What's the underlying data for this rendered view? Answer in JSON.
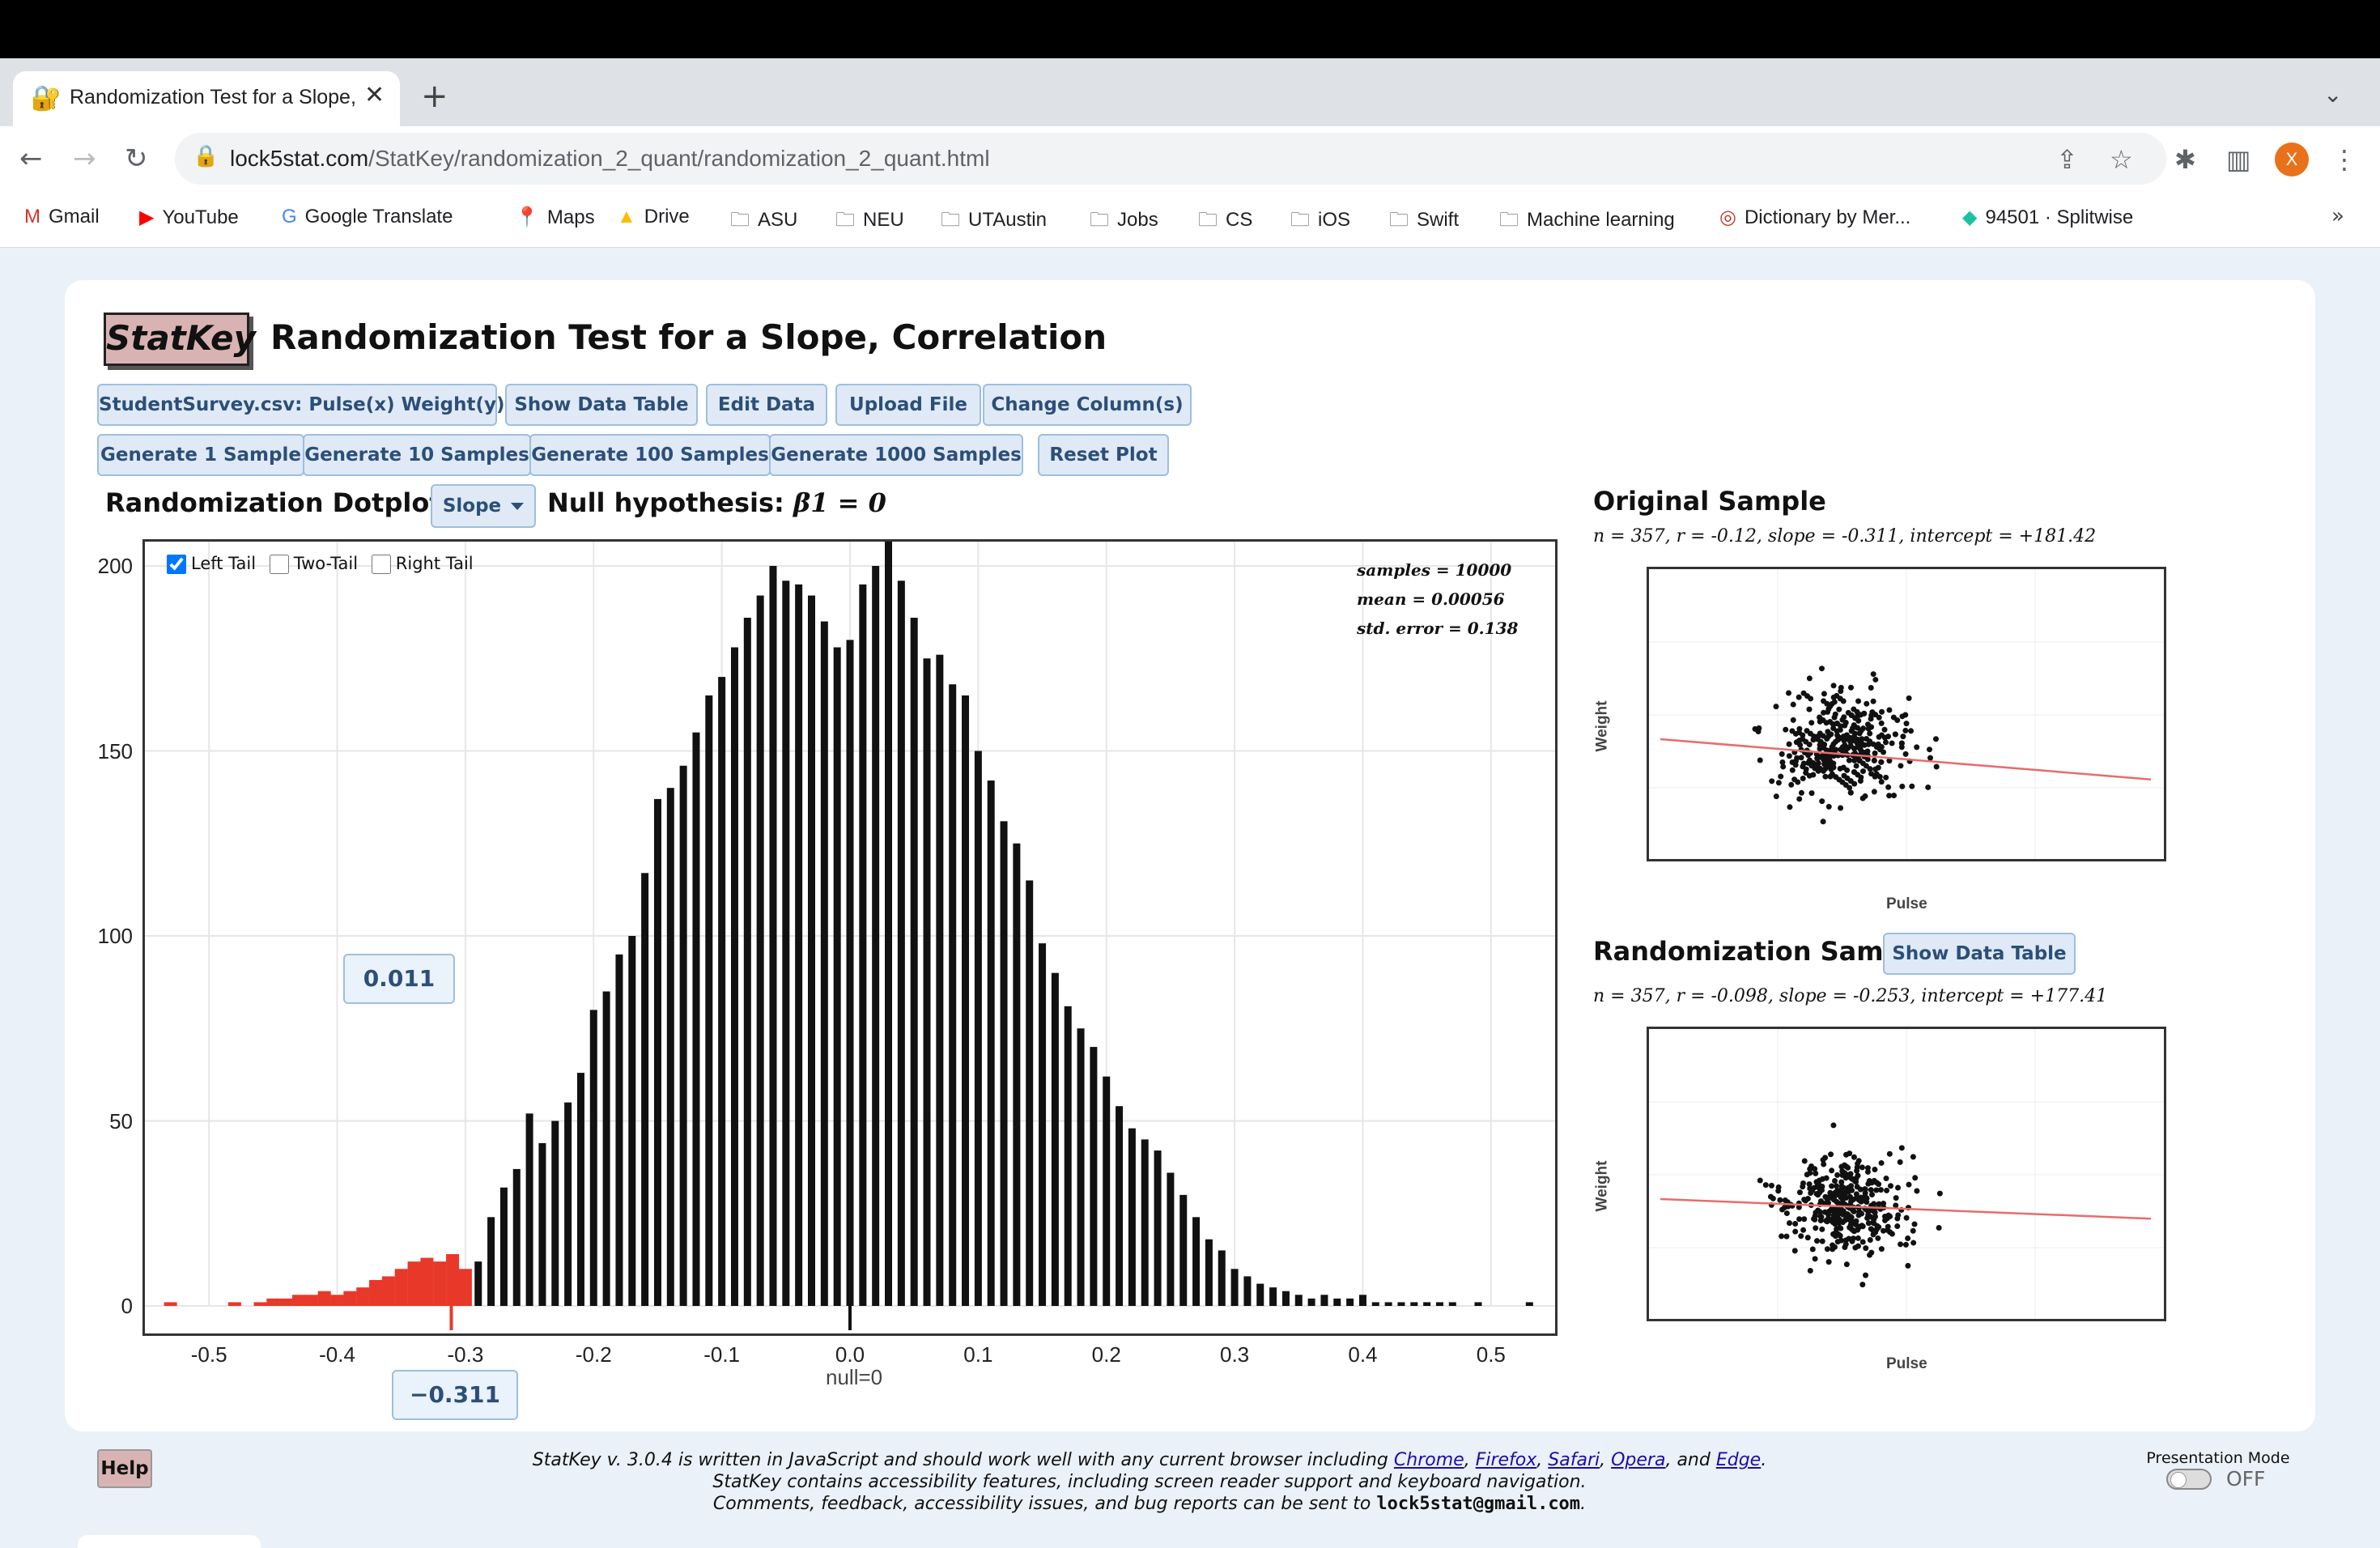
{
  "browser": {
    "tab_title": "Randomization Test for a Slope, Correlation",
    "url_domain": "lock5stat.com",
    "url_path": "/StatKey/randomization_2_quant/randomization_2_quant.html",
    "avatar_letter": "X",
    "bookmarks": [
      {
        "label": "Gmail",
        "icon": "gmail-icon"
      },
      {
        "label": "YouTube",
        "icon": "youtube-icon"
      },
      {
        "label": "Google Translate",
        "icon": "translate-icon"
      },
      {
        "label": "Maps",
        "icon": "maps-icon"
      },
      {
        "label": "Drive",
        "icon": "drive-icon"
      },
      {
        "label": "ASU",
        "icon": "folder-icon"
      },
      {
        "label": "NEU",
        "icon": "folder-icon"
      },
      {
        "label": "UTAustin",
        "icon": "folder-icon"
      },
      {
        "label": "Jobs",
        "icon": "folder-icon"
      },
      {
        "label": "CS",
        "icon": "folder-icon"
      },
      {
        "label": "iOS",
        "icon": "folder-icon"
      },
      {
        "label": "Swift",
        "icon": "folder-icon"
      },
      {
        "label": "Machine learning",
        "icon": "folder-icon"
      },
      {
        "label": "Dictionary by Mer...",
        "icon": "dictionary-icon"
      },
      {
        "label": "94501 · Splitwise",
        "icon": "splitwise-icon"
      }
    ]
  },
  "app": {
    "logo": "StatKey",
    "title": "Randomization Test for a Slope, Correlation",
    "dataset_select": "StudentSurvey.csv: Pulse(x) Weight(y)",
    "buttons_row1": [
      "Show Data Table",
      "Edit Data",
      "Upload File",
      "Change Column(s)"
    ],
    "buttons_row2": [
      "Generate 1 Sample",
      "Generate 10 Samples",
      "Generate 100 Samples",
      "Generate 1000 Samples",
      "Reset Plot"
    ],
    "dotplot_label": "Randomization Dotplot of",
    "statistic_select": "Slope",
    "null_hyp_label": "Null hypothesis:",
    "null_hyp_math": "β1 = 0",
    "tails": {
      "left": {
        "label": "Left Tail",
        "checked": true
      },
      "two": {
        "label": "Two-Tail",
        "checked": false
      },
      "right": {
        "label": "Right Tail",
        "checked": false
      }
    },
    "stats": {
      "samples": "samples = 10000",
      "mean": "mean = 0.00056",
      "se": "std. error = 0.138"
    },
    "p_value": "0.011",
    "observed": "−0.311",
    "null_label": "null=0",
    "original": {
      "title": "Original Sample",
      "stats": "n = 357, r = -0.12, slope = -0.311, intercept = +181.42",
      "xlabel": "Pulse",
      "ylabel": "Weight"
    },
    "randomization": {
      "title": "Randomization Sample",
      "button": "Show Data Table",
      "stats": "n = 357, r = -0.098, slope = -0.253, intercept = +177.41",
      "xlabel": "Pulse",
      "ylabel": "Weight"
    },
    "footer": {
      "help": "Help",
      "line1_pre": "StatKey v. 3.0.4 is written in JavaScript and should work well with any current browser including",
      "browsers": [
        "Chrome",
        "Firefox",
        "Safari",
        "Opera",
        "Edge"
      ],
      "line2": "StatKey contains accessibility features, including screen reader support and keyboard navigation.",
      "line3_pre": "Comments, feedback, accessibility issues, and bug reports can be sent to",
      "email": "lock5stat@gmail.com",
      "presentation_label": "Presentation Mode",
      "presentation_state": "OFF"
    }
  },
  "chart_data": {
    "type": "bar",
    "xlim": [
      -0.55,
      0.55
    ],
    "ylim": [
      0,
      200
    ],
    "xticks": [
      -0.5,
      -0.4,
      -0.3,
      -0.2,
      -0.1,
      0.0,
      0.1,
      0.2,
      0.3,
      0.4,
      0.5
    ],
    "yticks": [
      0,
      50,
      100,
      150,
      200
    ],
    "tail_color": "#e8382a",
    "bar_color": "#111111",
    "observed": -0.311,
    "x": [
      -0.29,
      -0.28,
      -0.27,
      -0.26,
      -0.25,
      -0.24,
      -0.23,
      -0.22,
      -0.21,
      -0.2,
      -0.19,
      -0.18,
      -0.17,
      -0.16,
      -0.15,
      -0.14,
      -0.13,
      -0.12,
      -0.11,
      -0.1,
      -0.09,
      -0.08,
      -0.07,
      -0.06,
      -0.05,
      -0.04,
      -0.03,
      -0.02,
      -0.01,
      0.0,
      0.01,
      0.02,
      0.03,
      0.04,
      0.05,
      0.06,
      0.07,
      0.08,
      0.09,
      0.1,
      0.11,
      0.12,
      0.13,
      0.14,
      0.15,
      0.16,
      0.17,
      0.18,
      0.19,
      0.2,
      0.21,
      0.22,
      0.23,
      0.24,
      0.25,
      0.26,
      0.27,
      0.28,
      0.29,
      0.3,
      0.31,
      0.32,
      0.33,
      0.34,
      0.35,
      0.36,
      0.37,
      0.38,
      0.39,
      0.4,
      0.41,
      0.42,
      0.43,
      0.44,
      0.45,
      0.46,
      0.47,
      0.49,
      0.53
    ],
    "values": [
      12,
      24,
      32,
      37,
      52,
      44,
      50,
      55,
      63,
      80,
      85,
      95,
      100,
      117,
      137,
      140,
      146,
      155,
      165,
      170,
      178,
      186,
      192,
      200,
      196,
      195,
      192,
      185,
      178,
      180,
      195,
      200,
      215,
      196,
      186,
      175,
      176,
      168,
      165,
      150,
      142,
      131,
      125,
      115,
      98,
      90,
      81,
      75,
      70,
      62,
      54,
      48,
      45,
      42,
      36,
      30,
      24,
      18,
      15,
      10,
      8,
      6,
      5,
      4,
      3,
      2,
      3,
      2,
      2,
      3,
      1,
      1,
      1,
      1,
      1,
      1,
      1,
      1,
      1
    ],
    "left_tail_x": [
      -0.53,
      -0.48,
      -0.46,
      -0.45,
      -0.44,
      -0.43,
      -0.42,
      -0.41,
      -0.4,
      -0.39,
      -0.38,
      -0.37,
      -0.36,
      -0.35,
      -0.34,
      -0.33,
      -0.32,
      -0.31,
      -0.3
    ],
    "left_tail_values": [
      1,
      1,
      1,
      2,
      2,
      3,
      3,
      4,
      3,
      4,
      5,
      7,
      8,
      10,
      12,
      13,
      12,
      14,
      10
    ]
  }
}
